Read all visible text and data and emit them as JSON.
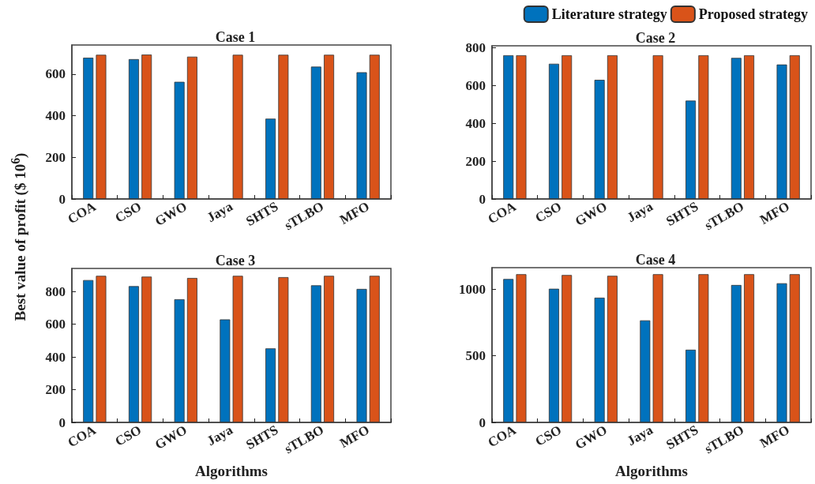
{
  "chart_data": [
    {
      "type": "bar",
      "title": "Case 1",
      "ylabel": "Best value of profit ($ 10$^{6}$)",
      "categories": [
        "COA",
        "CSO",
        "GWO",
        "Jaya",
        "SHTS",
        "sTLBO",
        "MFO"
      ],
      "series": [
        {
          "color": "#0072bd",
          "values": [
            679,
            672,
            563,
            null,
            386,
            636,
            609
          ]
        },
        {
          "color": "#d95319",
          "values": [
            693,
            694,
            684,
            693,
            693,
            693,
            693
          ]
        }
      ],
      "ylim": [
        0,
        740
      ],
      "yticks": [
        0,
        200,
        400,
        600
      ],
      "grid": false,
      "legend": false
    },
    {
      "type": "bar",
      "title": "Case 2",
      "categories": [
        "COA",
        "CSO",
        "GWO",
        "Jaya",
        "SHTS",
        "sTLBO",
        "MFO"
      ],
      "series": [
        {
          "name": "Literature strategy",
          "color": "#0072bd",
          "values": [
            760,
            715,
            630,
            null,
            520,
            746,
            711
          ]
        },
        {
          "name": "Proposed strategy",
          "color": "#d95319",
          "values": [
            760,
            760,
            760,
            760,
            760,
            760,
            760
          ]
        }
      ],
      "ylim": [
        0,
        810
      ],
      "yticks": [
        0,
        200,
        400,
        600,
        800
      ],
      "grid": false,
      "legend": "top right"
    },
    {
      "type": "bar",
      "title": "Case 3",
      "xlabel": "Algorithms",
      "categories": [
        "COA",
        "CSO",
        "GWO",
        "Jaya",
        "SHTS",
        "sTLBO",
        "MFO"
      ],
      "series": [
        {
          "color": "#0072bd",
          "values": [
            869,
            832,
            752,
            629,
            452,
            837,
            815
          ]
        },
        {
          "color": "#d95319",
          "values": [
            895,
            890,
            882,
            895,
            887,
            895,
            895
          ]
        }
      ],
      "ylim": [
        0,
        940
      ],
      "yticks": [
        0,
        200,
        400,
        600,
        800
      ],
      "grid": false,
      "legend": false
    },
    {
      "type": "bar",
      "title": "Case 4",
      "xlabel": "Algorithms",
      "categories": [
        "COA",
        "CSO",
        "GWO",
        "Jaya",
        "SHTS",
        "sTLBO",
        "MFO"
      ],
      "series": [
        {
          "color": "#0072bd",
          "values": [
            1075,
            1002,
            935,
            765,
            545,
            1030,
            1043
          ]
        },
        {
          "color": "#d95319",
          "values": [
            1111,
            1105,
            1099,
            1111,
            1111,
            1111,
            1111
          ]
        }
      ],
      "ylim": [
        0,
        1160
      ],
      "yticks": [
        0,
        500,
        1000
      ],
      "grid": false,
      "legend": false
    }
  ]
}
